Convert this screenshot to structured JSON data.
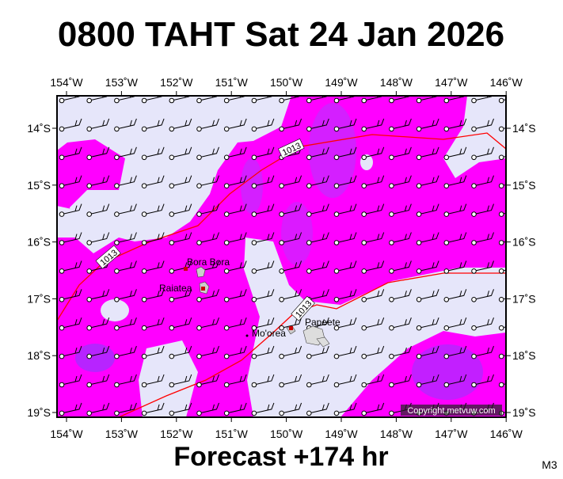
{
  "header": {
    "title": "0800 TAHT Sat 24 Jan 2026"
  },
  "map": {
    "lon_labels": [
      "154˚W",
      "153˚W",
      "152˚W",
      "151˚W",
      "150˚W",
      "149˚W",
      "148˚W",
      "147˚W",
      "146˚W"
    ],
    "lat_labels": [
      "14˚S",
      "15˚S",
      "16˚S",
      "17˚S",
      "18˚S",
      "19˚S"
    ],
    "places": [
      "Bora Bora",
      "Raiatea",
      "Mo'orea",
      "Papeete"
    ],
    "isobar_labels": [
      "1013",
      "1013",
      "1013"
    ],
    "copyright": "Copyright metvuw.com"
  },
  "footer": {
    "forecast": "Forecast +174 hr",
    "code": "M3"
  }
}
